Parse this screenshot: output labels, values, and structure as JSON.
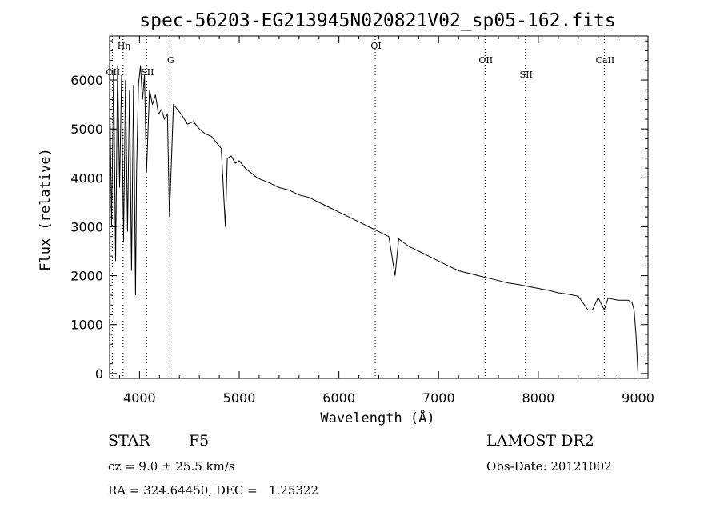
{
  "chart_data": {
    "type": "line",
    "title": "spec-56203-EG213945N020821V02_sp05-162.fits",
    "xlabel": "Wavelength (Å)",
    "ylabel": "Flux (relative)",
    "xlim": [
      3700,
      9100
    ],
    "ylim": [
      -100,
      6900
    ],
    "xticks": [
      4000,
      5000,
      6000,
      7000,
      8000,
      9000
    ],
    "yticks": [
      0,
      1000,
      2000,
      3000,
      4000,
      5000,
      6000
    ],
    "grid": false,
    "line_color": "#000000",
    "series": [
      {
        "x": [
          3700,
          3720,
          3740,
          3760,
          3780,
          3800,
          3820,
          3840,
          3860,
          3880,
          3900,
          3920,
          3940,
          3960,
          3970,
          3990,
          4010,
          4030,
          4050,
          4070,
          4100,
          4130,
          4160,
          4190,
          4220,
          4250,
          4280,
          4300,
          4340,
          4380,
          4420,
          4480,
          4540,
          4600,
          4660,
          4720,
          4780,
          4820,
          4861,
          4880,
          4920,
          4960,
          5000,
          5060,
          5120,
          5180,
          5240,
          5300,
          5400,
          5500,
          5600,
          5700,
          5800,
          5900,
          6000,
          6100,
          6200,
          6300,
          6400,
          6500,
          6563,
          6600,
          6700,
          6800,
          6900,
          7000,
          7100,
          7200,
          7300,
          7400,
          7500,
          7600,
          7700,
          7800,
          7900,
          8000,
          8100,
          8200,
          8300,
          8400,
          8498,
          8542,
          8600,
          8662,
          8700,
          8800,
          8900,
          8940,
          8960,
          8980,
          9000
        ],
        "y": [
          5900,
          3000,
          6200,
          2300,
          6300,
          3800,
          6100,
          2700,
          6000,
          2900,
          5800,
          2100,
          5900,
          1600,
          4100,
          5900,
          6300,
          5600,
          6100,
          4100,
          5800,
          5500,
          5700,
          5300,
          5400,
          5200,
          5300,
          3200,
          5500,
          5400,
          5300,
          5100,
          5150,
          5000,
          4900,
          4850,
          4700,
          4600,
          3000,
          4400,
          4450,
          4300,
          4350,
          4200,
          4100,
          4000,
          3950,
          3900,
          3800,
          3750,
          3650,
          3600,
          3500,
          3400,
          3300,
          3200,
          3100,
          3000,
          2900,
          2800,
          2000,
          2750,
          2600,
          2500,
          2400,
          2300,
          2200,
          2100,
          2050,
          2000,
          1950,
          1900,
          1850,
          1820,
          1780,
          1740,
          1700,
          1650,
          1620,
          1580,
          1300,
          1300,
          1550,
          1300,
          1540,
          1500,
          1500,
          1450,
          1300,
          800,
          0
        ]
      }
    ],
    "lines": [
      {
        "label": "Hη",
        "x": 3835
      },
      {
        "label": "OII",
        "x": 3727
      },
      {
        "label": "SII",
        "x": 4072
      },
      {
        "label": "G",
        "x": 4305
      },
      {
        "label": "OI",
        "x": 6364
      },
      {
        "label": "OII",
        "x": 7465
      },
      {
        "label": "SII",
        "x": 7870
      },
      {
        "label": "CaII",
        "x": 8662
      }
    ]
  },
  "info": {
    "object_type": "STAR",
    "subclass": "F5",
    "survey": "LAMOST DR2",
    "cz": "cz = 9.0 ± 25.5 km/s",
    "obs_date": "Obs-Date: 20121002",
    "coords": "RA = 324.64450, DEC =   1.25322"
  }
}
